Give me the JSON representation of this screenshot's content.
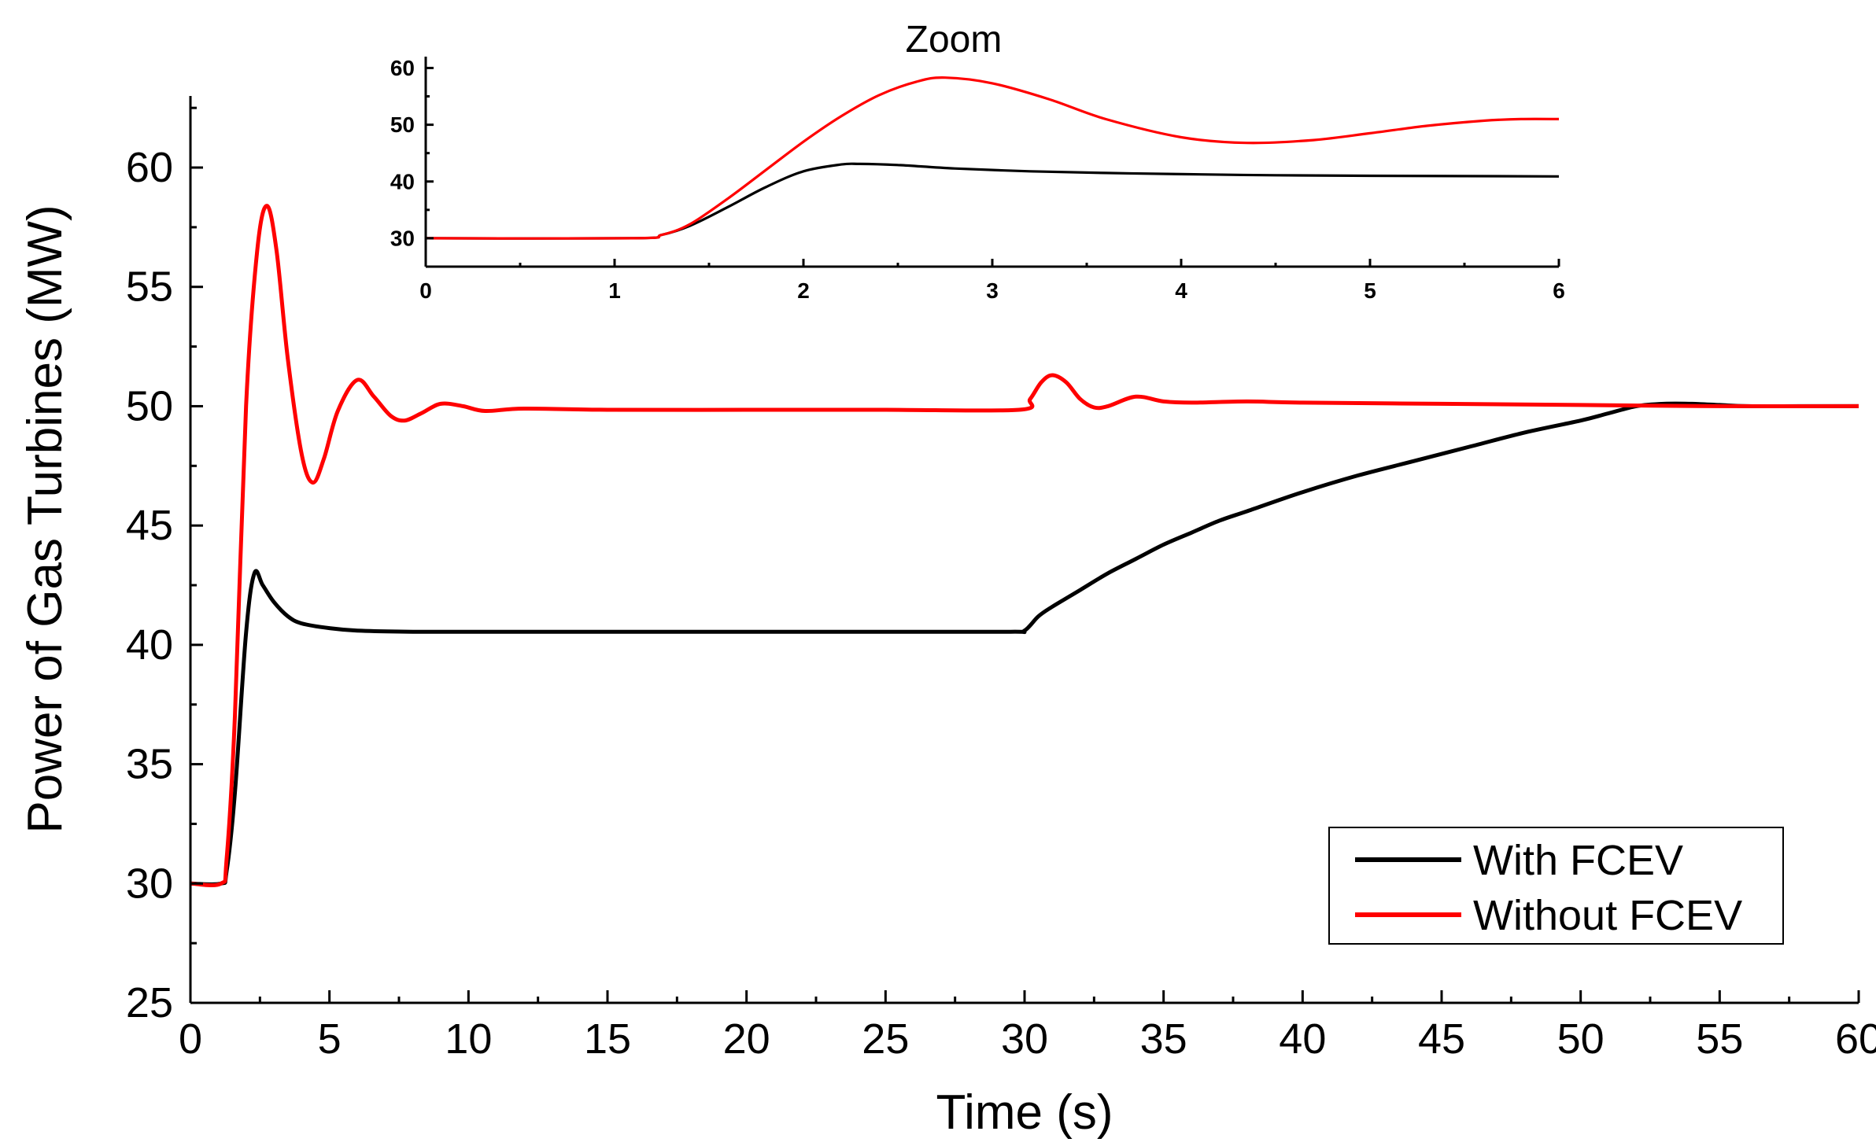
{
  "chart_data": [
    {
      "type": "line",
      "title": "",
      "xlabel": "Time (s)",
      "ylabel": "Power of Gas Turbines (MW)",
      "xlim": [
        0,
        60
      ],
      "ylim": [
        25,
        63
      ],
      "xticks": [
        0,
        5,
        10,
        15,
        20,
        25,
        30,
        35,
        40,
        45,
        50,
        55,
        60
      ],
      "xtick_labels": [
        "0",
        "5",
        "10",
        "15",
        "20",
        "25",
        "30",
        "35",
        "40",
        "45",
        "50",
        "55",
        "60"
      ],
      "yticks": [
        25,
        30,
        35,
        40,
        45,
        50,
        55,
        60
      ],
      "ytick_labels": [
        "25",
        "30",
        "35",
        "40",
        "45",
        "50",
        "55",
        "60"
      ],
      "grid": false,
      "legend": "bottom-right",
      "series": [
        {
          "name": "With FCEV",
          "color": "#000000",
          "x": [
            0,
            1.1,
            1.3,
            1.6,
            2.0,
            2.3,
            2.6,
            3.0,
            3.5,
            4.0,
            5.0,
            6.0,
            8.0,
            10,
            15,
            20,
            25,
            29.5,
            30.0,
            30.5,
            31,
            32,
            33,
            34,
            35,
            36,
            37,
            38,
            40,
            42,
            44,
            46,
            48,
            50,
            51,
            52,
            53,
            54,
            55,
            56,
            58,
            60
          ],
          "y": [
            30,
            30,
            30.5,
            33.8,
            40.5,
            43.0,
            42.5,
            41.8,
            41.2,
            40.9,
            40.7,
            40.6,
            40.55,
            40.55,
            40.55,
            40.55,
            40.55,
            40.55,
            40.6,
            41.2,
            41.6,
            42.3,
            43.0,
            43.6,
            44.2,
            44.7,
            45.2,
            45.6,
            46.4,
            47.1,
            47.7,
            48.3,
            48.9,
            49.4,
            49.7,
            50.0,
            50.1,
            50.1,
            50.05,
            50.0,
            50.0,
            50.0
          ]
        },
        {
          "name": "Without FCEV",
          "color": "#ff0000",
          "x": [
            0,
            1.1,
            1.3,
            1.6,
            2.0,
            2.4,
            2.75,
            3.1,
            3.5,
            4.0,
            4.4,
            4.8,
            5.3,
            6.0,
            6.6,
            7.2,
            7.7,
            8.3,
            9.0,
            9.8,
            10.6,
            12,
            15,
            20,
            25,
            29.8,
            30.2,
            30.6,
            31.0,
            31.5,
            32,
            32.5,
            33,
            34,
            35,
            36,
            38,
            40,
            45,
            50,
            55,
            60
          ],
          "y": [
            30,
            30,
            31.0,
            37.0,
            50.0,
            56.5,
            58.4,
            56.5,
            52.0,
            48.0,
            46.8,
            47.8,
            49.8,
            51.1,
            50.4,
            49.6,
            49.4,
            49.7,
            50.1,
            50.0,
            49.8,
            49.9,
            49.85,
            49.85,
            49.85,
            49.85,
            50.3,
            51.0,
            51.3,
            51.0,
            50.3,
            49.95,
            50.0,
            50.4,
            50.2,
            50.15,
            50.2,
            50.15,
            50.1,
            50.05,
            50.0,
            50.0
          ]
        }
      ]
    },
    {
      "type": "line",
      "title": "Zoom",
      "xlabel": "",
      "ylabel": "",
      "xlim": [
        0,
        6
      ],
      "ylim": [
        25,
        62
      ],
      "xticks": [
        0,
        1,
        2,
        3,
        4,
        5,
        6
      ],
      "xtick_labels": [
        "0",
        "1",
        "2",
        "3",
        "4",
        "5",
        "6"
      ],
      "yticks": [
        30,
        40,
        50,
        60
      ],
      "ytick_labels": [
        "30",
        "40",
        "50",
        "60"
      ],
      "grid": false,
      "series": [
        {
          "name": "With FCEV",
          "color": "#000000",
          "x": [
            0,
            1.1,
            1.25,
            1.4,
            1.6,
            1.8,
            2.0,
            2.2,
            2.3,
            2.5,
            2.8,
            3.2,
            3.6,
            4.0,
            4.5,
            5.0,
            5.5,
            6.0
          ],
          "y": [
            30,
            30,
            30.6,
            32.2,
            35.5,
            39.0,
            41.8,
            43.0,
            43.1,
            42.9,
            42.3,
            41.8,
            41.5,
            41.3,
            41.1,
            41.0,
            40.95,
            40.9
          ]
        },
        {
          "name": "Without FCEV",
          "color": "#ff0000",
          "x": [
            0,
            1.1,
            1.25,
            1.4,
            1.6,
            1.8,
            2.0,
            2.2,
            2.4,
            2.6,
            2.75,
            3.0,
            3.3,
            3.6,
            4.0,
            4.35,
            4.7,
            5.0,
            5.3,
            5.6,
            5.8,
            6.0
          ],
          "y": [
            30,
            30,
            30.6,
            32.5,
            37.0,
            42.0,
            47.0,
            51.5,
            55.2,
            57.6,
            58.3,
            57.3,
            54.5,
            51.0,
            47.8,
            46.8,
            47.3,
            48.5,
            49.8,
            50.7,
            51.0,
            51.0
          ]
        }
      ]
    }
  ]
}
